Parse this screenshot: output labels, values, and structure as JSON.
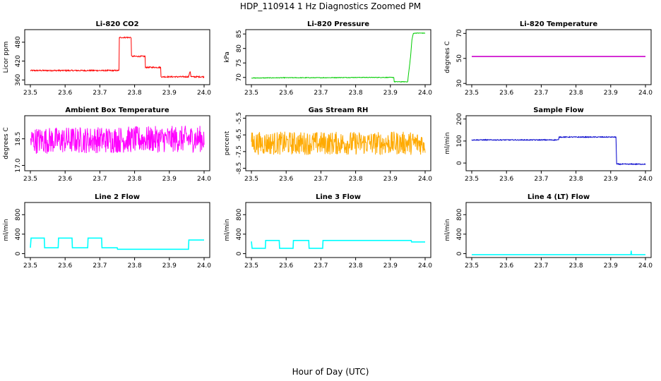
{
  "figure": {
    "title": "HDP_110914  1 Hz Diagnostics Zoomed PM",
    "xlabel": "Hour of Day (UTC)"
  },
  "chart_data": [
    {
      "type": "line",
      "title": "Li-820 CO2",
      "ylabel": "Licor ppm",
      "color": "#ff0000",
      "xlim": [
        23.5,
        24.0
      ],
      "ylim": [
        345,
        520
      ],
      "x_ticks": [
        "23.5",
        "23.6",
        "23.7",
        "23.8",
        "23.9",
        "24.0"
      ],
      "y_ticks": [
        "360",
        "420",
        "480"
      ],
      "noise": 2,
      "series": [
        {
          "x": [
            23.5,
            23.67,
            23.755,
            23.756,
            23.79,
            23.791,
            23.83,
            23.831,
            23.875,
            23.876,
            23.955,
            23.96,
            23.962,
            23.965,
            24.0
          ],
          "y": [
            390,
            390,
            390,
            495,
            495,
            435,
            435,
            400,
            400,
            370,
            370,
            388,
            372,
            370,
            370
          ]
        }
      ]
    },
    {
      "type": "line",
      "title": "Li-820 Pressure",
      "ylabel": "kPa",
      "color": "#00cc00",
      "xlim": [
        23.5,
        24.0
      ],
      "ylim": [
        67.5,
        86.5
      ],
      "x_ticks": [
        "23.5",
        "23.6",
        "23.7",
        "23.8",
        "23.9",
        "24.0"
      ],
      "y_ticks": [
        "70",
        "75",
        "80",
        "85"
      ],
      "noise": 0.1,
      "series": [
        {
          "x": [
            23.5,
            23.6,
            23.7,
            23.8,
            23.91,
            23.911,
            23.95,
            23.951,
            23.958,
            23.962,
            23.966,
            23.97,
            24.0
          ],
          "y": [
            69.8,
            69.9,
            69.9,
            70.0,
            70.0,
            68.5,
            68.5,
            70.0,
            77,
            83,
            85.2,
            85.3,
            85.3
          ]
        }
      ]
    },
    {
      "type": "line",
      "title": "Li-820 Temperature",
      "ylabel": "degrees C",
      "color": "#cc00cc",
      "xlim": [
        23.5,
        24.0
      ],
      "ylim": [
        29,
        73
      ],
      "x_ticks": [
        "23.5",
        "23.6",
        "23.7",
        "23.8",
        "23.9",
        "24.0"
      ],
      "y_ticks": [
        "30",
        "50",
        "70"
      ],
      "noise": 0,
      "series": [
        {
          "x": [
            23.5,
            24.0
          ],
          "y": [
            51.5,
            51.5
          ]
        }
      ]
    },
    {
      "type": "line",
      "title": "Ambient Box Temperature",
      "ylabel": "degrees C",
      "color": "#ff00ff",
      "xlim": [
        23.5,
        24.0
      ],
      "ylim": [
        16.7,
        19.8
      ],
      "x_ticks": [
        "23.5",
        "23.6",
        "23.7",
        "23.8",
        "23.9",
        "24.0"
      ],
      "y_ticks": [
        "17.0",
        "18.5"
      ],
      "noise": 0.75,
      "series": [
        {
          "x": [
            23.5,
            24.0
          ],
          "y": [
            18.4,
            18.5
          ]
        }
      ]
    },
    {
      "type": "line",
      "title": "Gas Stream RH",
      "ylabel": "percent",
      "color": "#ffaa00",
      "xlim": [
        23.5,
        24.0
      ],
      "ylim": [
        -8.65,
        -5.35
      ],
      "x_ticks": [
        "23.5",
        "23.6",
        "23.7",
        "23.8",
        "23.9",
        "24.0"
      ],
      "y_ticks": [
        "-8.5",
        "-7.5",
        "-6.5",
        "-5.5"
      ],
      "noise": 0.7,
      "series": [
        {
          "x": [
            23.5,
            24.0
          ],
          "y": [
            -7.0,
            -7.0
          ]
        }
      ]
    },
    {
      "type": "line",
      "title": "Sample Flow",
      "ylabel": "ml/min",
      "color": "#0000cc",
      "xlim": [
        23.5,
        24.0
      ],
      "ylim": [
        -35,
        215
      ],
      "x_ticks": [
        "23.5",
        "23.6",
        "23.7",
        "23.8",
        "23.9",
        "24.0"
      ],
      "y_ticks": [
        "0",
        "100",
        "200"
      ],
      "noise": 2,
      "series": [
        {
          "x": [
            23.5,
            23.75,
            23.751,
            23.915,
            23.917,
            24.0
          ],
          "y": [
            105,
            105,
            118,
            118,
            -5,
            -5
          ]
        }
      ]
    },
    {
      "type": "line",
      "title": "Line 2 Flow",
      "ylabel": "ml/min",
      "color": "#00ffff",
      "xlim": [
        23.5,
        24.0
      ],
      "ylim": [
        -80,
        1050
      ],
      "x_ticks": [
        "23.5",
        "23.6",
        "23.7",
        "23.8",
        "23.9",
        "24.0"
      ],
      "y_ticks": [
        "0",
        "400",
        "800"
      ],
      "noise": 0,
      "series": [
        {
          "x": [
            23.5,
            23.502,
            23.54,
            23.541,
            23.58,
            23.581,
            23.62,
            23.621,
            23.665,
            23.666,
            23.705,
            23.706,
            23.75,
            23.751,
            23.955,
            23.956,
            24.0
          ],
          "y": [
            120,
            320,
            320,
            120,
            120,
            320,
            320,
            120,
            120,
            320,
            320,
            120,
            120,
            90,
            90,
            280,
            280
          ]
        }
      ]
    },
    {
      "type": "line",
      "title": "Line 3 Flow",
      "ylabel": "ml/min",
      "color": "#00ffff",
      "xlim": [
        23.5,
        24.0
      ],
      "ylim": [
        -80,
        1050
      ],
      "x_ticks": [
        "23.5",
        "23.6",
        "23.7",
        "23.8",
        "23.9",
        "24.0"
      ],
      "y_ticks": [
        "0",
        "400",
        "800"
      ],
      "noise": 0,
      "series": [
        {
          "x": [
            23.5,
            23.502,
            23.54,
            23.541,
            23.58,
            23.581,
            23.62,
            23.621,
            23.665,
            23.666,
            23.705,
            23.706,
            23.96,
            23.961,
            24.0
          ],
          "y": [
            250,
            110,
            110,
            270,
            270,
            110,
            110,
            270,
            270,
            110,
            110,
            270,
            270,
            240,
            240
          ]
        }
      ]
    },
    {
      "type": "line",
      "title": "Line 4 (LT) Flow",
      "ylabel": "ml/min",
      "color": "#00ffff",
      "xlim": [
        23.5,
        24.0
      ],
      "ylim": [
        -80,
        1050
      ],
      "x_ticks": [
        "23.5",
        "23.6",
        "23.7",
        "23.8",
        "23.9",
        "24.0"
      ],
      "y_ticks": [
        "0",
        "400",
        "800"
      ],
      "noise": 0,
      "series": [
        {
          "x": [
            23.5,
            23.958,
            23.959,
            23.96,
            23.961,
            24.0
          ],
          "y": [
            -20,
            -20,
            60,
            -20,
            -20,
            -20
          ]
        }
      ]
    }
  ]
}
